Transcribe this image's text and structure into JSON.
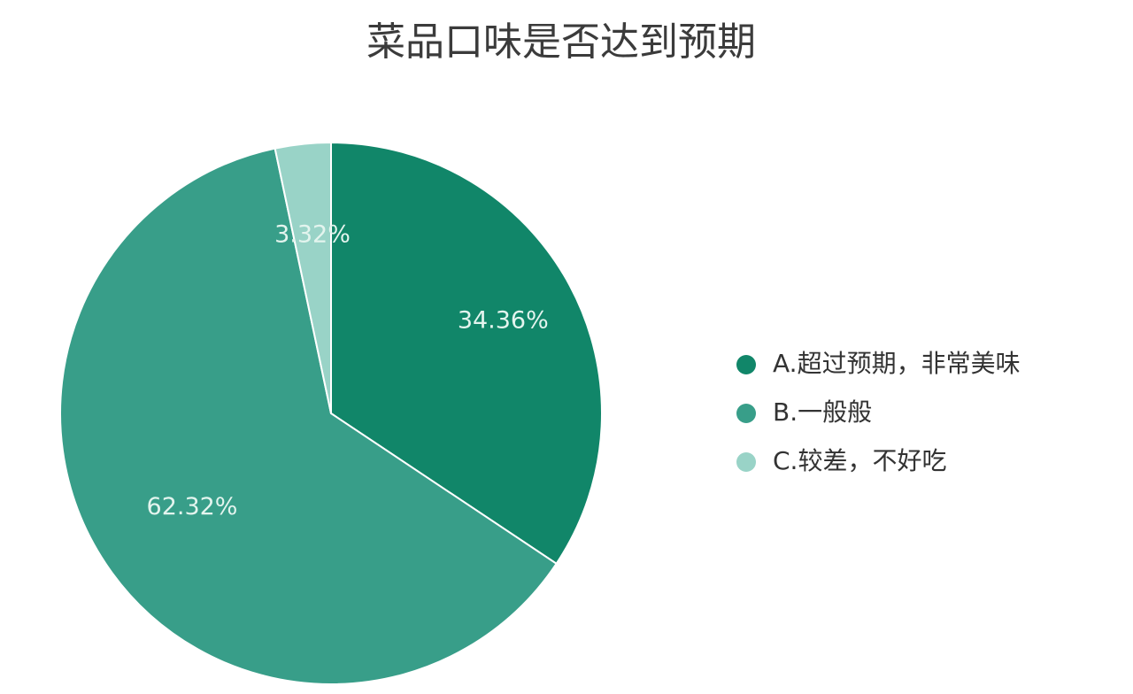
{
  "chart_data": {
    "type": "pie",
    "title": "菜品口味是否达到预期",
    "slices": [
      {
        "label": "A.超过预期，非常美味",
        "value": 34.36,
        "value_label": "34.36%",
        "color": "#118669"
      },
      {
        "label": "B.一般般",
        "value": 62.32,
        "value_label": "62.32%",
        "color": "#389e89"
      },
      {
        "label": "C.较差，不好吃",
        "value": 3.32,
        "value_label": "3.32%",
        "color": "#99d3c7"
      }
    ],
    "start_angle": "12 o'clock",
    "direction": "clockwise",
    "legend_position": "right"
  }
}
